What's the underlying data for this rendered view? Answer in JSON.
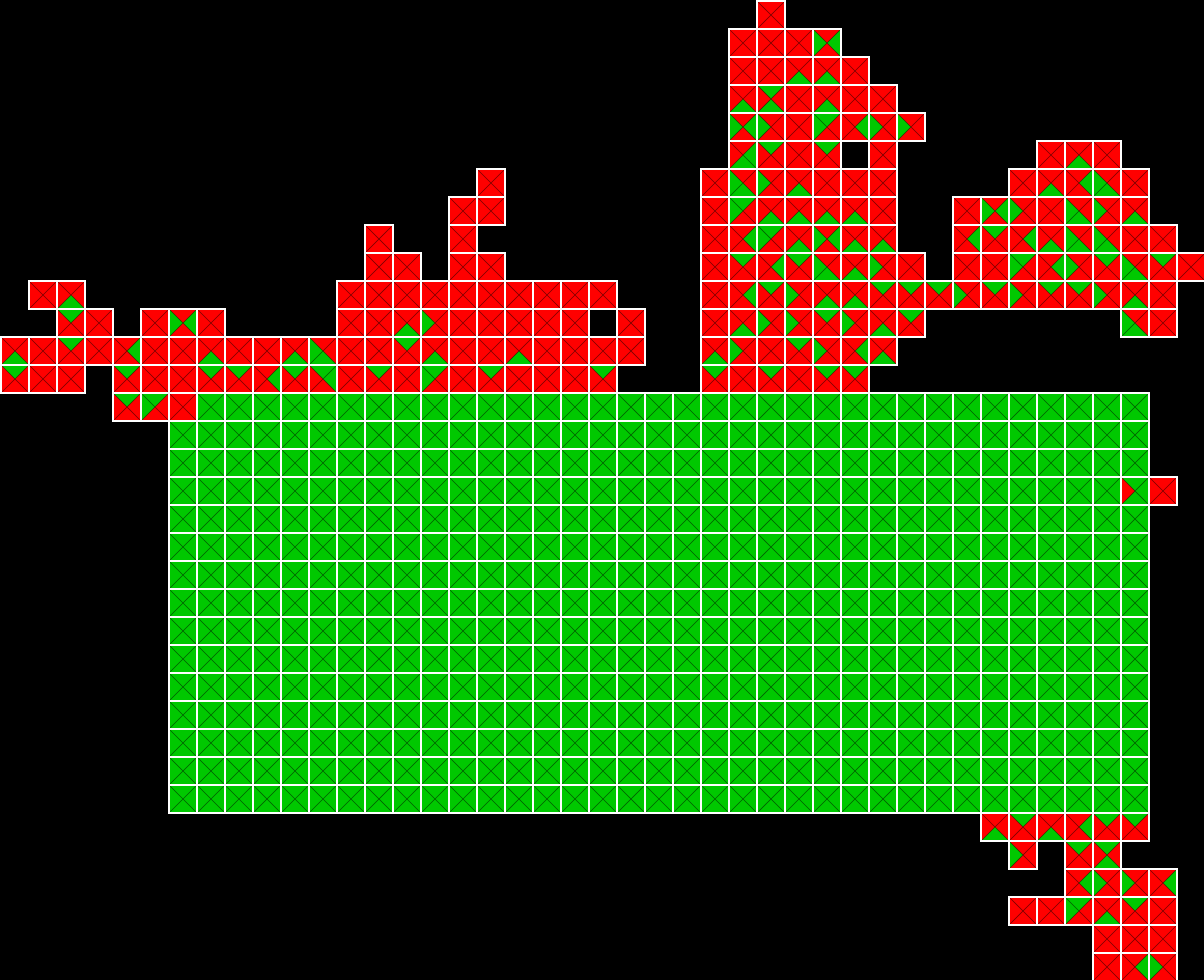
{
  "board": {
    "cols": 43,
    "rows": 35,
    "colors": {
      "background": "#000000",
      "red": "#ff0000",
      "green": "#00c800",
      "grid": "#ffffff"
    },
    "green_block": {
      "col_start": 6,
      "col_end": 40,
      "row_start": 14,
      "row_end": 28
    },
    "red_tiles": [
      [
        27,
        0
      ],
      [
        26,
        1
      ],
      [
        27,
        1
      ],
      [
        28,
        1
      ],
      [
        29,
        1
      ],
      [
        26,
        2
      ],
      [
        27,
        2
      ],
      [
        28,
        2
      ],
      [
        29,
        2
      ],
      [
        30,
        2
      ],
      [
        26,
        3
      ],
      [
        27,
        3
      ],
      [
        28,
        3
      ],
      [
        29,
        3
      ],
      [
        30,
        3
      ],
      [
        31,
        3
      ],
      [
        26,
        4
      ],
      [
        27,
        4
      ],
      [
        28,
        4
      ],
      [
        29,
        4
      ],
      [
        30,
        4
      ],
      [
        31,
        4
      ],
      [
        32,
        4
      ],
      [
        26,
        5
      ],
      [
        27,
        5
      ],
      [
        28,
        5
      ],
      [
        29,
        5
      ],
      [
        31,
        5
      ],
      [
        17,
        6
      ],
      [
        25,
        6
      ],
      [
        26,
        6
      ],
      [
        27,
        6
      ],
      [
        28,
        6
      ],
      [
        29,
        6
      ],
      [
        30,
        6
      ],
      [
        31,
        6
      ],
      [
        37,
        5
      ],
      [
        38,
        5
      ],
      [
        39,
        5
      ],
      [
        36,
        6
      ],
      [
        37,
        6
      ],
      [
        38,
        6
      ],
      [
        39,
        6
      ],
      [
        40,
        6
      ],
      [
        16,
        7
      ],
      [
        17,
        7
      ],
      [
        25,
        7
      ],
      [
        26,
        7
      ],
      [
        27,
        7
      ],
      [
        28,
        7
      ],
      [
        29,
        7
      ],
      [
        30,
        7
      ],
      [
        31,
        7
      ],
      [
        34,
        7
      ],
      [
        35,
        7
      ],
      [
        36,
        7
      ],
      [
        37,
        7
      ],
      [
        38,
        7
      ],
      [
        39,
        7
      ],
      [
        40,
        7
      ],
      [
        13,
        8
      ],
      [
        16,
        8
      ],
      [
        25,
        8
      ],
      [
        26,
        8
      ],
      [
        27,
        8
      ],
      [
        28,
        8
      ],
      [
        29,
        8
      ],
      [
        30,
        8
      ],
      [
        31,
        8
      ],
      [
        34,
        8
      ],
      [
        35,
        8
      ],
      [
        36,
        8
      ],
      [
        37,
        8
      ],
      [
        38,
        8
      ],
      [
        39,
        8
      ],
      [
        40,
        8
      ],
      [
        41,
        8
      ],
      [
        13,
        9
      ],
      [
        14,
        9
      ],
      [
        16,
        9
      ],
      [
        17,
        9
      ],
      [
        25,
        9
      ],
      [
        26,
        9
      ],
      [
        27,
        9
      ],
      [
        28,
        9
      ],
      [
        29,
        9
      ],
      [
        30,
        9
      ],
      [
        31,
        9
      ],
      [
        32,
        9
      ],
      [
        34,
        9
      ],
      [
        35,
        9
      ],
      [
        36,
        9
      ],
      [
        37,
        9
      ],
      [
        38,
        9
      ],
      [
        39,
        9
      ],
      [
        40,
        9
      ],
      [
        41,
        9
      ],
      [
        42,
        9
      ],
      [
        1,
        10
      ],
      [
        2,
        10
      ],
      [
        12,
        10
      ],
      [
        13,
        10
      ],
      [
        14,
        10
      ],
      [
        15,
        10
      ],
      [
        16,
        10
      ],
      [
        17,
        10
      ],
      [
        18,
        10
      ],
      [
        19,
        10
      ],
      [
        20,
        10
      ],
      [
        21,
        10
      ],
      [
        25,
        10
      ],
      [
        26,
        10
      ],
      [
        27,
        10
      ],
      [
        28,
        10
      ],
      [
        29,
        10
      ],
      [
        30,
        10
      ],
      [
        31,
        10
      ],
      [
        32,
        10
      ],
      [
        33,
        10
      ],
      [
        34,
        10
      ],
      [
        35,
        10
      ],
      [
        36,
        10
      ],
      [
        37,
        10
      ],
      [
        38,
        10
      ],
      [
        39,
        10
      ],
      [
        40,
        10
      ],
      [
        41,
        10
      ],
      [
        2,
        11
      ],
      [
        3,
        11
      ],
      [
        5,
        11
      ],
      [
        6,
        11
      ],
      [
        7,
        11
      ],
      [
        12,
        11
      ],
      [
        13,
        11
      ],
      [
        14,
        11
      ],
      [
        15,
        11
      ],
      [
        16,
        11
      ],
      [
        17,
        11
      ],
      [
        18,
        11
      ],
      [
        19,
        11
      ],
      [
        20,
        11
      ],
      [
        22,
        11
      ],
      [
        25,
        11
      ],
      [
        26,
        11
      ],
      [
        27,
        11
      ],
      [
        28,
        11
      ],
      [
        29,
        11
      ],
      [
        30,
        11
      ],
      [
        31,
        11
      ],
      [
        32,
        11
      ],
      [
        40,
        11
      ],
      [
        41,
        11
      ],
      [
        0,
        12
      ],
      [
        1,
        12
      ],
      [
        2,
        12
      ],
      [
        3,
        12
      ],
      [
        4,
        12
      ],
      [
        5,
        12
      ],
      [
        6,
        12
      ],
      [
        7,
        12
      ],
      [
        8,
        12
      ],
      [
        9,
        12
      ],
      [
        10,
        12
      ],
      [
        11,
        12
      ],
      [
        12,
        12
      ],
      [
        13,
        12
      ],
      [
        14,
        12
      ],
      [
        15,
        12
      ],
      [
        16,
        12
      ],
      [
        17,
        12
      ],
      [
        18,
        12
      ],
      [
        19,
        12
      ],
      [
        20,
        12
      ],
      [
        21,
        12
      ],
      [
        22,
        12
      ],
      [
        25,
        12
      ],
      [
        26,
        12
      ],
      [
        27,
        12
      ],
      [
        28,
        12
      ],
      [
        29,
        12
      ],
      [
        30,
        12
      ],
      [
        31,
        12
      ],
      [
        0,
        13
      ],
      [
        1,
        13
      ],
      [
        2,
        13
      ],
      [
        4,
        13
      ],
      [
        5,
        13
      ],
      [
        6,
        13
      ],
      [
        7,
        13
      ],
      [
        8,
        13
      ],
      [
        9,
        13
      ],
      [
        10,
        13
      ],
      [
        11,
        13
      ],
      [
        12,
        13
      ],
      [
        13,
        13
      ],
      [
        14,
        13
      ],
      [
        15,
        13
      ],
      [
        16,
        13
      ],
      [
        17,
        13
      ],
      [
        18,
        13
      ],
      [
        19,
        13
      ],
      [
        20,
        13
      ],
      [
        21,
        13
      ],
      [
        25,
        13
      ],
      [
        26,
        13
      ],
      [
        27,
        13
      ],
      [
        28,
        13
      ],
      [
        29,
        13
      ],
      [
        30,
        13
      ],
      [
        4,
        14
      ],
      [
        5,
        14
      ],
      [
        6,
        14
      ],
      [
        40,
        17
      ],
      [
        41,
        17
      ],
      [
        35,
        29
      ],
      [
        36,
        29
      ],
      [
        37,
        29
      ],
      [
        38,
        29
      ],
      [
        39,
        29
      ],
      [
        40,
        29
      ],
      [
        36,
        30
      ],
      [
        38,
        30
      ],
      [
        39,
        30
      ],
      [
        38,
        31
      ],
      [
        39,
        31
      ],
      [
        40,
        31
      ],
      [
        41,
        31
      ],
      [
        36,
        32
      ],
      [
        37,
        32
      ],
      [
        38,
        32
      ],
      [
        39,
        32
      ],
      [
        40,
        32
      ],
      [
        41,
        32
      ],
      [
        39,
        33
      ],
      [
        40,
        33
      ],
      [
        41,
        33
      ],
      [
        39,
        34
      ],
      [
        40,
        34
      ],
      [
        41,
        34
      ]
    ],
    "green_overrides": [
      [
        2,
        10,
        "b"
      ],
      [
        2,
        11,
        "t"
      ],
      [
        2,
        12,
        "t"
      ],
      [
        0,
        12,
        "b"
      ],
      [
        0,
        13,
        "t"
      ],
      [
        6,
        11,
        "l"
      ],
      [
        6,
        11,
        "r"
      ],
      [
        7,
        12,
        "b"
      ],
      [
        4,
        12,
        "r"
      ],
      [
        4,
        13,
        "t"
      ],
      [
        5,
        14,
        "l"
      ],
      [
        5,
        14,
        "t"
      ],
      [
        4,
        14,
        "t"
      ],
      [
        14,
        11,
        "b"
      ],
      [
        15,
        11,
        "l"
      ],
      [
        14,
        12,
        "t"
      ],
      [
        15,
        12,
        "b"
      ],
      [
        10,
        12,
        "b"
      ],
      [
        11,
        12,
        "l"
      ],
      [
        11,
        12,
        "b"
      ],
      [
        7,
        13,
        "t"
      ],
      [
        8,
        13,
        "t"
      ],
      [
        9,
        13,
        "r"
      ],
      [
        10,
        13,
        "t"
      ],
      [
        11,
        13,
        "t"
      ],
      [
        11,
        13,
        "r"
      ],
      [
        13,
        13,
        "t"
      ],
      [
        15,
        13,
        "l"
      ],
      [
        15,
        13,
        "t"
      ],
      [
        17,
        13,
        "t"
      ],
      [
        18,
        12,
        "b"
      ],
      [
        21,
        13,
        "t"
      ],
      [
        29,
        1,
        "l"
      ],
      [
        29,
        1,
        "r"
      ],
      [
        28,
        2,
        "b"
      ],
      [
        29,
        2,
        "b"
      ],
      [
        26,
        3,
        "b"
      ],
      [
        27,
        3,
        "t"
      ],
      [
        27,
        3,
        "b"
      ],
      [
        29,
        3,
        "b"
      ],
      [
        26,
        4,
        "l"
      ],
      [
        26,
        4,
        "r"
      ],
      [
        27,
        4,
        "l"
      ],
      [
        29,
        4,
        "l"
      ],
      [
        29,
        4,
        "t"
      ],
      [
        30,
        4,
        "r"
      ],
      [
        31,
        4,
        "l"
      ],
      [
        32,
        4,
        "l"
      ],
      [
        26,
        5,
        "r"
      ],
      [
        26,
        5,
        "b"
      ],
      [
        27,
        5,
        "t"
      ],
      [
        29,
        5,
        "t"
      ],
      [
        26,
        6,
        "l"
      ],
      [
        26,
        6,
        "b"
      ],
      [
        27,
        6,
        "l"
      ],
      [
        28,
        6,
        "b"
      ],
      [
        26,
        7,
        "t"
      ],
      [
        26,
        7,
        "l"
      ],
      [
        27,
        7,
        "b"
      ],
      [
        28,
        7,
        "b"
      ],
      [
        29,
        7,
        "b"
      ],
      [
        30,
        7,
        "b"
      ],
      [
        26,
        8,
        "r"
      ],
      [
        27,
        8,
        "l"
      ],
      [
        27,
        8,
        "t"
      ],
      [
        28,
        8,
        "b"
      ],
      [
        29,
        8,
        "l"
      ],
      [
        29,
        8,
        "r"
      ],
      [
        30,
        8,
        "b"
      ],
      [
        31,
        8,
        "b"
      ],
      [
        26,
        9,
        "t"
      ],
      [
        27,
        9,
        "r"
      ],
      [
        28,
        9,
        "t"
      ],
      [
        29,
        9,
        "l"
      ],
      [
        29,
        9,
        "b"
      ],
      [
        30,
        9,
        "b"
      ],
      [
        31,
        9,
        "l"
      ],
      [
        26,
        10,
        "r"
      ],
      [
        27,
        10,
        "t"
      ],
      [
        28,
        10,
        "l"
      ],
      [
        29,
        10,
        "b"
      ],
      [
        30,
        10,
        "b"
      ],
      [
        31,
        10,
        "t"
      ],
      [
        32,
        10,
        "t"
      ],
      [
        26,
        11,
        "b"
      ],
      [
        27,
        11,
        "l"
      ],
      [
        28,
        11,
        "l"
      ],
      [
        29,
        11,
        "t"
      ],
      [
        30,
        11,
        "l"
      ],
      [
        31,
        11,
        "b"
      ],
      [
        32,
        11,
        "t"
      ],
      [
        25,
        12,
        "b"
      ],
      [
        26,
        12,
        "l"
      ],
      [
        28,
        12,
        "t"
      ],
      [
        29,
        12,
        "l"
      ],
      [
        30,
        12,
        "r"
      ],
      [
        31,
        12,
        "b"
      ],
      [
        25,
        13,
        "t"
      ],
      [
        27,
        13,
        "t"
      ],
      [
        29,
        13,
        "t"
      ],
      [
        30,
        13,
        "t"
      ],
      [
        35,
        7,
        "l"
      ],
      [
        35,
        7,
        "r"
      ],
      [
        36,
        7,
        "l"
      ],
      [
        37,
        6,
        "b"
      ],
      [
        38,
        6,
        "r"
      ],
      [
        38,
        5,
        "b"
      ],
      [
        39,
        6,
        "l"
      ],
      [
        39,
        6,
        "b"
      ],
      [
        36,
        8,
        "r"
      ],
      [
        37,
        8,
        "b"
      ],
      [
        38,
        7,
        "l"
      ],
      [
        38,
        7,
        "b"
      ],
      [
        39,
        7,
        "l"
      ],
      [
        40,
        7,
        "b"
      ],
      [
        34,
        8,
        "r"
      ],
      [
        35,
        8,
        "t"
      ],
      [
        36,
        9,
        "l"
      ],
      [
        36,
        9,
        "t"
      ],
      [
        37,
        9,
        "r"
      ],
      [
        38,
        8,
        "l"
      ],
      [
        38,
        8,
        "b"
      ],
      [
        39,
        8,
        "l"
      ],
      [
        39,
        8,
        "b"
      ],
      [
        38,
        9,
        "l"
      ],
      [
        39,
        9,
        "t"
      ],
      [
        40,
        9,
        "l"
      ],
      [
        40,
        9,
        "b"
      ],
      [
        41,
        9,
        "t"
      ],
      [
        33,
        10,
        "t"
      ],
      [
        34,
        10,
        "l"
      ],
      [
        35,
        10,
        "t"
      ],
      [
        36,
        10,
        "l"
      ],
      [
        37,
        10,
        "t"
      ],
      [
        38,
        10,
        "t"
      ],
      [
        39,
        10,
        "l"
      ],
      [
        40,
        10,
        "b"
      ],
      [
        40,
        11,
        "l"
      ],
      [
        40,
        11,
        "b"
      ],
      [
        40,
        17,
        "r"
      ],
      [
        40,
        17,
        "t"
      ],
      [
        40,
        17,
        "b"
      ],
      [
        35,
        29,
        "b"
      ],
      [
        36,
        29,
        "t"
      ],
      [
        37,
        29,
        "b"
      ],
      [
        38,
        29,
        "r"
      ],
      [
        39,
        29,
        "t"
      ],
      [
        40,
        29,
        "t"
      ],
      [
        36,
        30,
        "l"
      ],
      [
        38,
        30,
        "t"
      ],
      [
        39,
        30,
        "t"
      ],
      [
        39,
        30,
        "b"
      ],
      [
        38,
        31,
        "r"
      ],
      [
        39,
        31,
        "l"
      ],
      [
        40,
        31,
        "l"
      ],
      [
        41,
        31,
        "r"
      ],
      [
        38,
        32,
        "t"
      ],
      [
        38,
        32,
        "l"
      ],
      [
        39,
        32,
        "b"
      ],
      [
        40,
        32,
        "t"
      ],
      [
        40,
        34,
        "r"
      ],
      [
        41,
        34,
        "l"
      ]
    ]
  }
}
